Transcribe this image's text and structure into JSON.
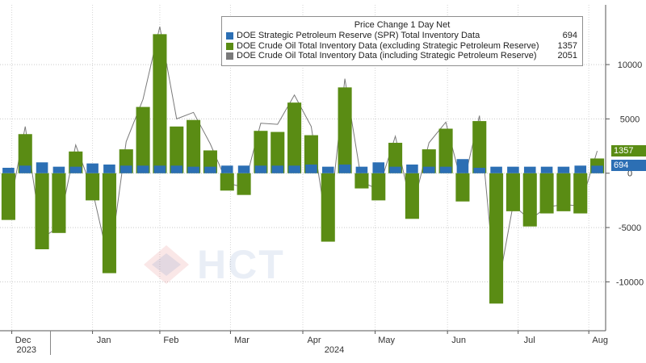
{
  "watermark": "HCT",
  "chart_data": {
    "type": "bar",
    "title": "Price Change 1 Day Net",
    "ylim": [
      -14500,
      15500
    ],
    "yticks": [
      10000,
      5000,
      0,
      -5000,
      -10000
    ],
    "ytick_labels": [
      "10000",
      "5000",
      "0",
      "-5000",
      "-10000"
    ],
    "xticks": [
      {
        "label": "Dec",
        "pos": 0.7
      },
      {
        "label": "Jan",
        "pos": 5.5
      },
      {
        "label": "Feb",
        "pos": 9.5
      },
      {
        "label": "Mar",
        "pos": 13.7
      },
      {
        "label": "Apr",
        "pos": 18.0
      },
      {
        "label": "May",
        "pos": 22.3
      },
      {
        "label": "Jun",
        "pos": 26.6
      },
      {
        "label": "Jul",
        "pos": 30.8
      },
      {
        "label": "Aug",
        "pos": 35.0
      }
    ],
    "year_labels": [
      {
        "label": "2023",
        "pos": 0.9
      },
      {
        "label": "2024",
        "pos": 19.2
      }
    ],
    "year_divider_pos": 3.0,
    "series": [
      {
        "name": "DOE Strategic Petroleum Reserve (SPR) Total Inventory Data",
        "color": "#2c6fb4",
        "last": "694",
        "values": [
          500,
          700,
          1000,
          600,
          600,
          900,
          800,
          700,
          700,
          700,
          700,
          600,
          600,
          700,
          700,
          700,
          700,
          700,
          800,
          600,
          800,
          600,
          1000,
          600,
          800,
          600,
          600,
          1300,
          500,
          600,
          600,
          600,
          600,
          600,
          700,
          694
        ]
      },
      {
        "name": "DOE Crude Oil Total Inventory Data (excluding Strategic Petroleum Reserve)",
        "color": "#5a8c14",
        "last": "1357",
        "values": [
          -4300,
          3600,
          -7000,
          -5500,
          2000,
          -2500,
          -9200,
          2200,
          6100,
          12800,
          4300,
          4900,
          2100,
          -1600,
          -2000,
          3900,
          3800,
          6500,
          3500,
          -6300,
          7900,
          -1400,
          -2500,
          2800,
          -4200,
          2200,
          4100,
          -2600,
          4800,
          -12000,
          -3500,
          -4900,
          -3700,
          -3500,
          -3700,
          1357
        ]
      },
      {
        "name": "DOE Crude Oil Total Inventory Data (including Strategic Petroleum Reserve)",
        "color": "#7a7a7a",
        "last": "2051",
        "values": [
          -3800,
          4300,
          -6000,
          -4900,
          2600,
          -1600,
          -8400,
          2900,
          6800,
          13500,
          5000,
          5600,
          2700,
          -900,
          -1300,
          4600,
          4500,
          7200,
          4300,
          -5700,
          8700,
          -800,
          -1500,
          3400,
          -3400,
          2800,
          4700,
          -1300,
          5300,
          -11400,
          -2900,
          -4300,
          -3100,
          -2900,
          -3000,
          2051
        ]
      }
    ]
  }
}
